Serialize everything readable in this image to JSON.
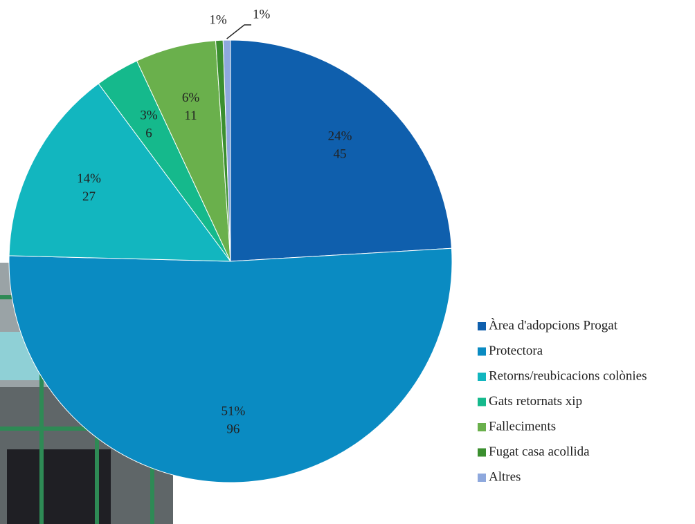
{
  "chart_data": {
    "type": "pie",
    "categories": [
      "Àrea d'adopcions Progat",
      "Protectora",
      "Retorns/reubicacions colònies",
      "Gats retornats xip",
      "Falleciments",
      "Fugat casa acollida",
      "Altres"
    ],
    "values": [
      45,
      96,
      27,
      6,
      11,
      1,
      1
    ],
    "percent_labels": [
      "24%",
      "51%",
      "14%",
      "3%",
      "6%",
      "1%",
      "1%"
    ],
    "colors": [
      "#0f5fad",
      "#0a8bc2",
      "#12b6bf",
      "#15b98c",
      "#6ab04c",
      "#3b8f2f",
      "#8ea8dd"
    ],
    "legend": "right"
  }
}
